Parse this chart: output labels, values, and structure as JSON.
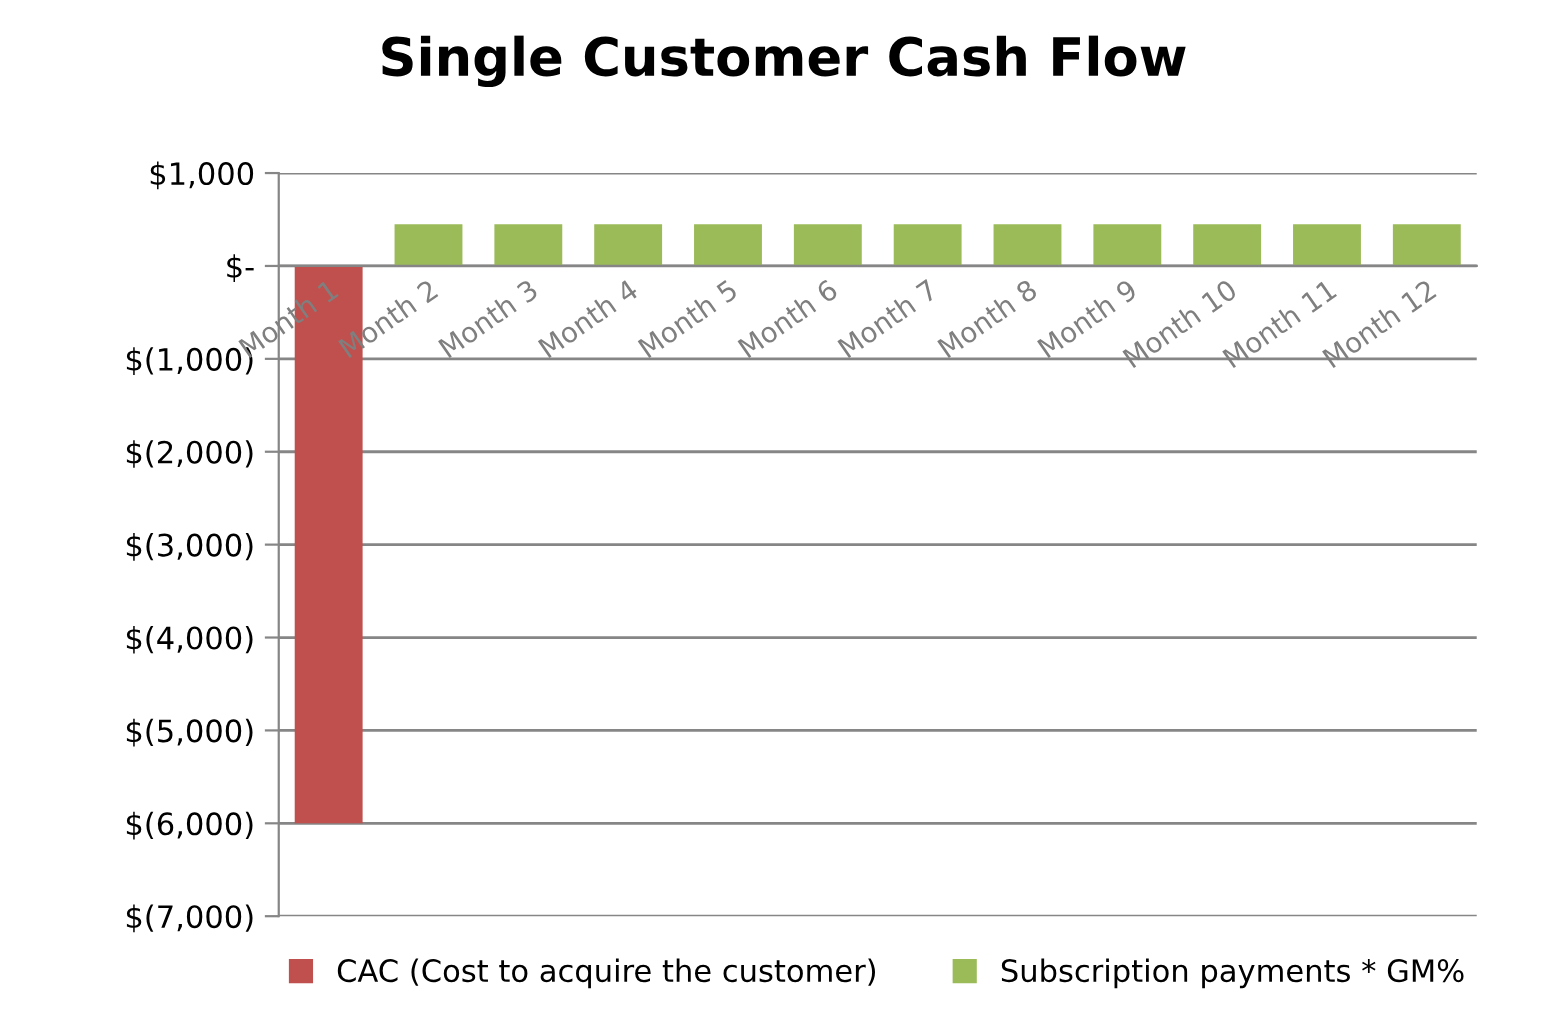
{
  "chart_data": {
    "type": "bar",
    "title": "Single Customer Cash Flow",
    "categories": [
      "Month 1",
      "Month 2",
      "Month 3",
      "Month 4",
      "Month 5",
      "Month 6",
      "Month 7",
      "Month 8",
      "Month 9",
      "Month 10",
      "Month 11",
      "Month 12"
    ],
    "series": [
      {
        "name": "CAC (Cost to acquire the customer)",
        "color": "#c0504d",
        "values": [
          -6000,
          null,
          null,
          null,
          null,
          null,
          null,
          null,
          null,
          null,
          null,
          null
        ]
      },
      {
        "name": "Subscription payments * GM%",
        "color": "#9bbb59",
        "values": [
          null,
          450,
          450,
          450,
          450,
          450,
          450,
          450,
          450,
          450,
          450,
          450
        ]
      }
    ],
    "ylim": [
      -7000,
      1000
    ],
    "yticks": [
      {
        "value": 1000,
        "label": "$1,000"
      },
      {
        "value": 0,
        "label": "$-"
      },
      {
        "value": -1000,
        "label": "$(1,000)"
      },
      {
        "value": -2000,
        "label": "$(2,000)"
      },
      {
        "value": -3000,
        "label": "$(3,000)"
      },
      {
        "value": -4000,
        "label": "$(4,000)"
      },
      {
        "value": -5000,
        "label": "$(5,000)"
      },
      {
        "value": -6000,
        "label": "$(6,000)"
      },
      {
        "value": -7000,
        "label": "$(7,000)"
      }
    ],
    "grid": "y",
    "legend": "bottom"
  }
}
